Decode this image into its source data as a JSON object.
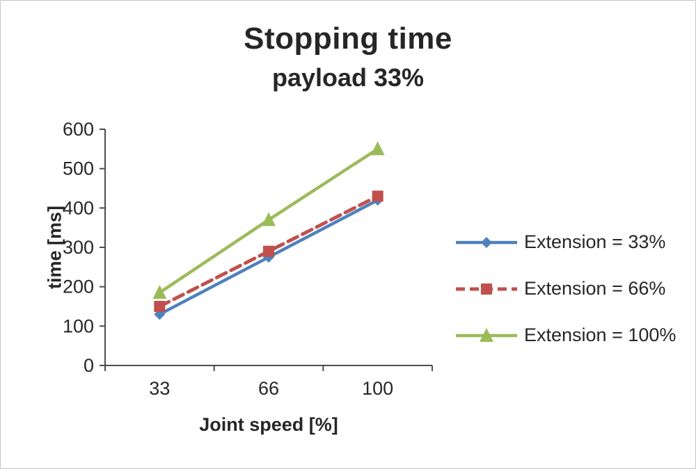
{
  "chart_data": {
    "type": "line",
    "title": "Stopping time",
    "subtitle": "payload 33%",
    "xlabel": "Joint speed [%]",
    "ylabel": "time [ms]",
    "categories": [
      "33",
      "66",
      "100"
    ],
    "ylim": [
      0,
      600
    ],
    "ytick_step": 100,
    "grid": false,
    "legend_position": "right",
    "axis_color": "#4d4d4d",
    "text_color": "#262626",
    "series": [
      {
        "name": "Extension = 33%",
        "values": [
          130,
          275,
          420
        ],
        "color": "#4F81BD",
        "marker": "diamond",
        "dash": "solid"
      },
      {
        "name": "Extension = 66%",
        "values": [
          150,
          290,
          430
        ],
        "color": "#C0504D",
        "marker": "square",
        "dash": "dashed"
      },
      {
        "name": "Extension = 100%",
        "values": [
          185,
          370,
          550
        ],
        "color": "#9BBB59",
        "marker": "triangle",
        "dash": "solid"
      }
    ]
  }
}
